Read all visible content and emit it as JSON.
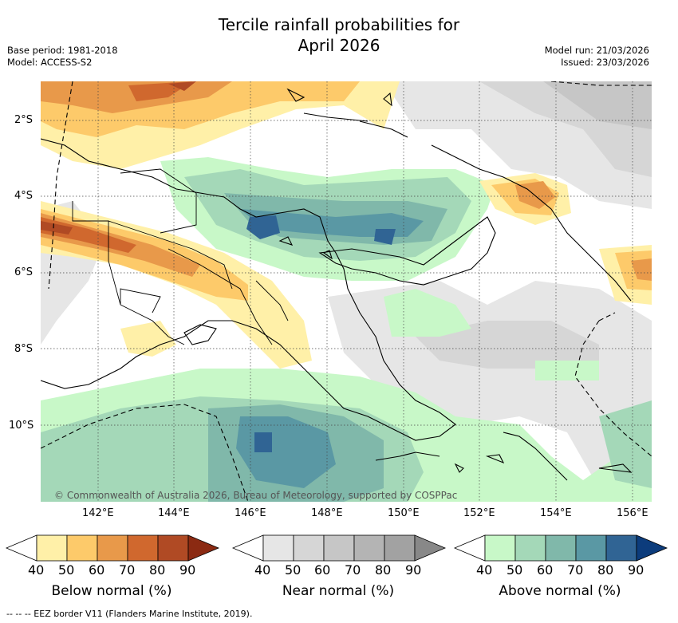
{
  "title_line1": "Tercile rainfall probabilities for",
  "title_line2": "April 2026",
  "base_period": "Base period: 1981-2018",
  "model": "Model: ACCESS-S2",
  "model_run": "Model run: 21/03/2026",
  "issued": "Issued: 23/03/2026",
  "lat_labels": [
    "2°S",
    "4°S",
    "6°S",
    "8°S",
    "10°S"
  ],
  "lon_labels": [
    "142°E",
    "144°E",
    "146°E",
    "148°E",
    "150°E",
    "152°E",
    "154°E",
    "156°E"
  ],
  "copyright": "© Commonwealth of Australia 2026, Bureau of Meteorology, supported by COSPPac",
  "legends": [
    {
      "title": "Below normal (%)",
      "levels": [
        "40",
        "50",
        "60",
        "70",
        "80",
        "90"
      ],
      "colors": [
        "#fff0a8",
        "#fdca6a",
        "#e8994a",
        "#d0682e",
        "#b04a24",
        "#8b2a12"
      ]
    },
    {
      "title": "Near normal (%)",
      "levels": [
        "40",
        "50",
        "60",
        "70",
        "80",
        "90"
      ],
      "colors": [
        "#e6e6e6",
        "#d6d6d6",
        "#c6c6c6",
        "#b4b4b4",
        "#a2a2a2",
        "#888888"
      ]
    },
    {
      "title": "Above normal (%)",
      "levels": [
        "40",
        "50",
        "60",
        "70",
        "80",
        "90"
      ],
      "colors": [
        "#c8f8c8",
        "#a4d8b8",
        "#80b8aa",
        "#5a98a4",
        "#306494",
        "#0c3c7c"
      ]
    }
  ],
  "footer": "--  --  -- EEZ border V11 (Flanders Marine Institute, 2019)."
}
